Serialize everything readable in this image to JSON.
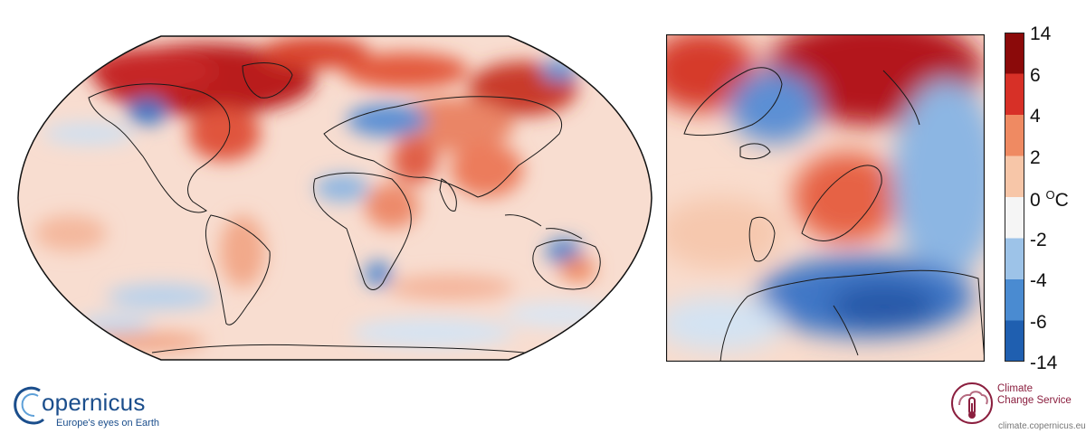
{
  "colorbar": {
    "labels": [
      "14",
      "6",
      "4",
      "2",
      "0",
      "-2",
      "-4",
      "-6",
      "-14"
    ],
    "unit": "C",
    "unit_prefix": "O",
    "colors": [
      "#0a2e6b",
      "#1f5fb0",
      "#4a8bd1",
      "#9dc3e8",
      "#f5f5f5",
      "#f7c6a8",
      "#ef8a62",
      "#d73027",
      "#8b0a0a"
    ]
  },
  "logos": {
    "copernicus": {
      "name": "opernicus",
      "tagline": "Europe's eyes on Earth"
    },
    "c3s": {
      "line1": "Climate",
      "line2": "Change Service",
      "url": "climate.copernicus.eu"
    }
  },
  "icons": [
    "copernicus-logo-icon",
    "c3s-thermometer-icon"
  ]
}
